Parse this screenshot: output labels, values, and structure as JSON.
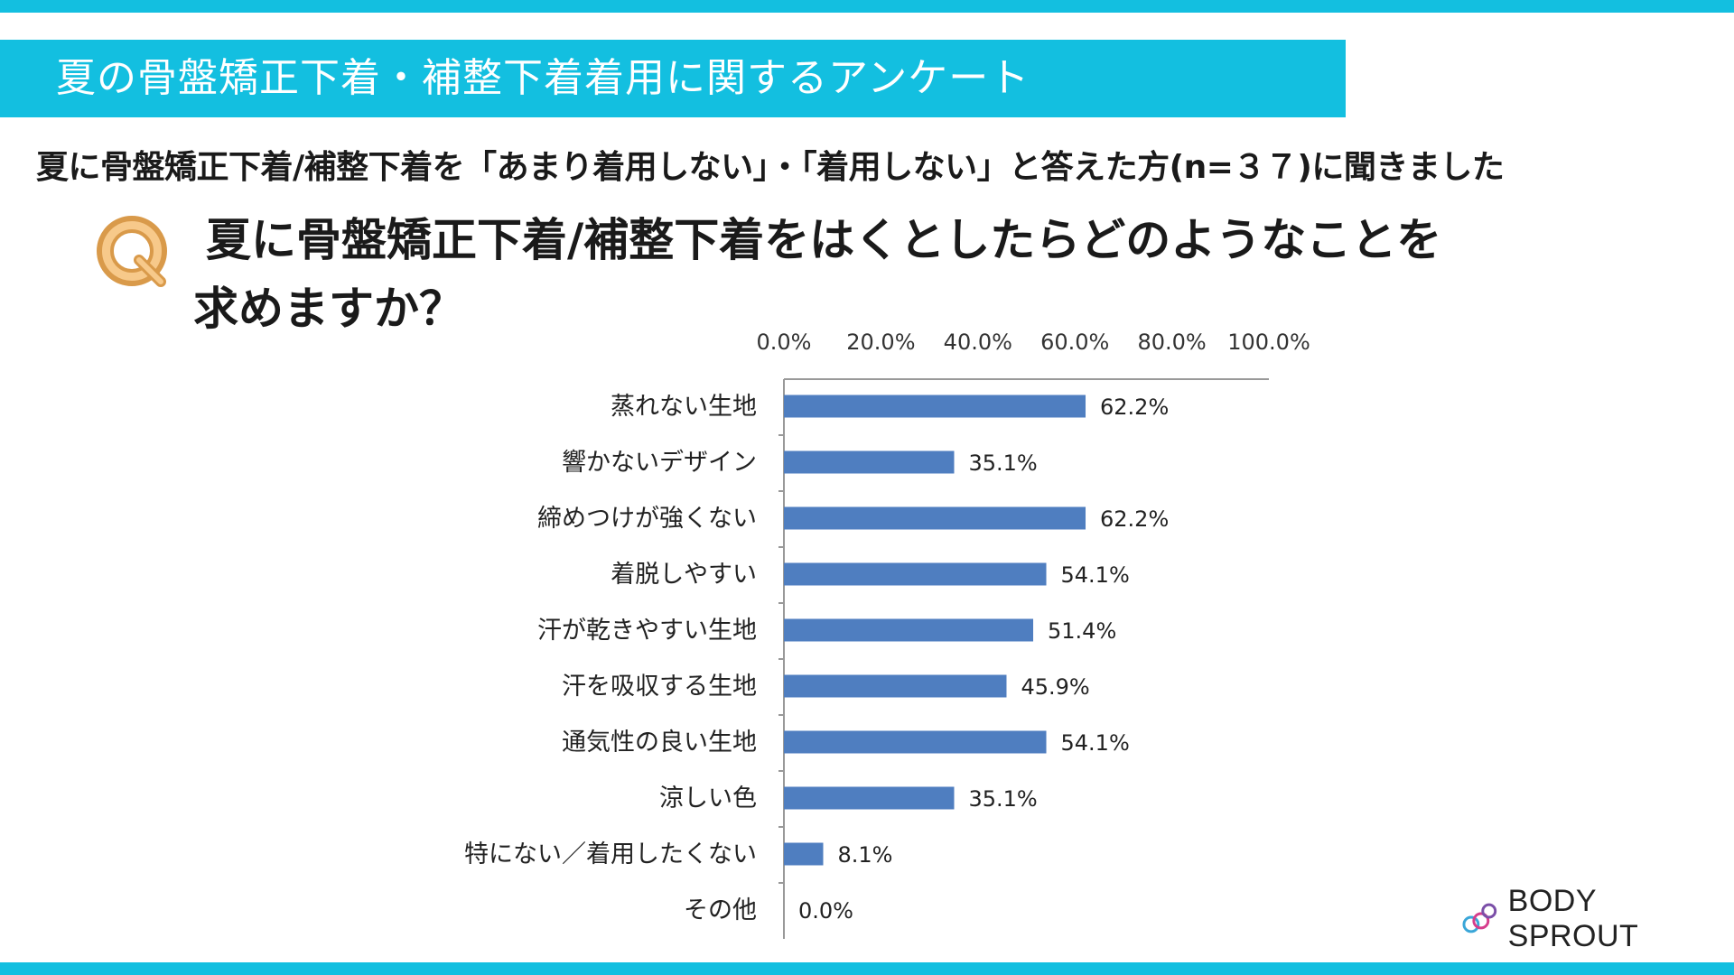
{
  "header": {
    "title": "夏の骨盤矯正下着・補整下着着用に関するアンケート",
    "subtitle": "夏に骨盤矯正下着/補整下着を「あまり着用しない」・「着用しない」と答えた方(n=３７)に聞きました"
  },
  "question": {
    "icon": "Q",
    "line1": "夏に骨盤矯正下着/補整下着をはくとしたらどのようなことを",
    "line2": "求めますか？"
  },
  "chart_data": {
    "type": "bar",
    "orientation": "horizontal",
    "title": "",
    "xlabel": "",
    "ylabel": "",
    "xlim": [
      0,
      100
    ],
    "x_ticks": [
      "0.0%",
      "20.0%",
      "40.0%",
      "60.0%",
      "80.0%",
      "100.0%"
    ],
    "x_axis_position": "top",
    "grid": false,
    "bar_color": "#4f7ec0",
    "categories": [
      "蒸れない生地",
      "響かないデザイン",
      "締めつけが強くない",
      "着脱しやすい",
      "汗が乾きやすい生地",
      "汗を吸収する生地",
      "通気性の良い生地",
      "涼しい色",
      "特にない／着用したくない",
      "その他"
    ],
    "values": [
      62.2,
      35.1,
      62.2,
      54.1,
      51.4,
      45.9,
      54.1,
      35.1,
      8.1,
      0.0
    ],
    "value_labels": [
      "62.2%",
      "35.1%",
      "62.2%",
      "54.1%",
      "51.4%",
      "45.9%",
      "54.1%",
      "35.1%",
      "8.1%",
      "0.0%"
    ]
  },
  "logo": {
    "text": "BODY SPROUT"
  },
  "colors": {
    "accent": "#13bfe0",
    "bar": "#4f7ec0",
    "q_icon": "#f0b060"
  }
}
